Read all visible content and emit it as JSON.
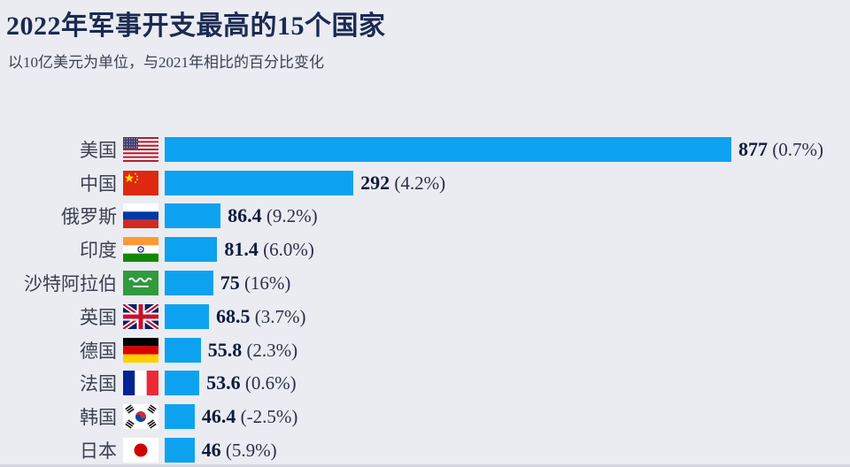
{
  "header": {
    "title": "2022年军事开支最高的15个国家",
    "subtitle": "以10亿美元为单位，与2021年相比的百分比变化"
  },
  "colors": {
    "background": "#EAECF2",
    "bar": "#0DA2F0",
    "title_text": "#1C2A52",
    "subtitle_text": "#3C4254",
    "label_text": "#3B4150",
    "value_text": "#0E1B3C"
  },
  "chart_data": {
    "type": "bar",
    "orientation": "horizontal",
    "title": "2022年军事开支最高的15个国家",
    "subtitle": "以10亿美元为单位，与2021年相比的百分比变化",
    "unit": "10亿美元",
    "xlim": [
      0,
      900
    ],
    "grid": false,
    "legend": false,
    "bar_color": "#0DA2F0",
    "categories": [
      "美国",
      "中国",
      "俄罗斯",
      "印度",
      "沙特阿拉伯",
      "英国",
      "德国",
      "法国",
      "韩国",
      "日本"
    ],
    "values": [
      877,
      292,
      86.4,
      81.4,
      75,
      68.5,
      55.8,
      53.6,
      46.4,
      46
    ],
    "value_labels": [
      "877",
      "292",
      "86.4",
      "81.4",
      "75",
      "68.5",
      "55.8",
      "53.6",
      "46.4",
      "46"
    ],
    "change_labels": [
      "(0.7%)",
      "(4.2%)",
      "(9.2%)",
      "(6.0%)",
      "(16%)",
      "(3.7%)",
      "(2.3%)",
      "(0.6%)",
      "(-2.5%)",
      "(5.9%)"
    ],
    "flags": [
      "flag-usa",
      "flag-china",
      "flag-russia",
      "flag-india",
      "flag-saudi-arabia",
      "flag-uk",
      "flag-germany",
      "flag-france",
      "flag-south-korea",
      "flag-japan"
    ]
  }
}
